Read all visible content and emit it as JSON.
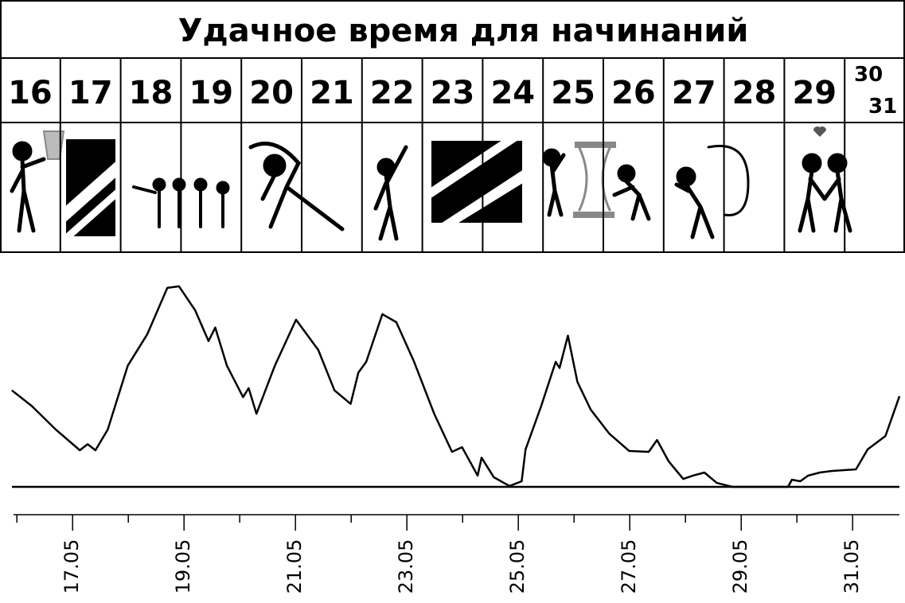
{
  "header": {
    "title": "Удачное время для начинаний",
    "days": [
      "16",
      "17",
      "18",
      "19",
      "20",
      "21",
      "22",
      "23",
      "24",
      "25",
      "26",
      "27",
      "28",
      "29",
      "30",
      "31"
    ]
  },
  "chart_data": {
    "type": "line",
    "color": "#000000",
    "x": [
      15.91,
      16.27,
      16.7,
      17.13,
      17.27,
      17.41,
      17.63,
      17.99,
      18.34,
      18.7,
      18.91,
      19.2,
      19.44,
      19.56,
      19.77,
      20.06,
      20.16,
      20.3,
      20.63,
      21.01,
      21.41,
      21.7,
      21.99,
      22.13,
      22.27,
      22.56,
      22.81,
      23.13,
      23.49,
      23.81,
      23.99,
      24.27,
      24.34,
      24.56,
      24.84,
      25.06,
      25.13,
      25.41,
      25.67,
      25.74,
      25.89,
      26.06,
      26.3,
      26.63,
      26.99,
      27.34,
      27.49,
      27.7,
      27.96,
      28.13,
      28.34,
      28.56,
      28.84,
      29.84,
      29.91,
      30.06,
      30.2,
      30.41,
      30.63,
      31.06,
      31.27,
      31.59,
      31.73,
      31.84
    ],
    "values": [
      43,
      36,
      25.5,
      16.3,
      19,
      16.3,
      25.5,
      54,
      68,
      88.7,
      89.4,
      78.7,
      65,
      71,
      54,
      40,
      44,
      32.6,
      54,
      74.5,
      61,
      43,
      37,
      51,
      55.7,
      77,
      73.4,
      55.7,
      32.6,
      15.6,
      17.7,
      5,
      13,
      4.3,
      0.4,
      2.5,
      16.7,
      36,
      55.7,
      53,
      67.4,
      46.8,
      34.4,
      23.8,
      16,
      15.6,
      20.9,
      11.3,
      3.5,
      5,
      6.4,
      1.8,
      0,
      0,
      3.2,
      2.5,
      5,
      6.4,
      7.1,
      7.8,
      16.7,
      22.7,
      32.6,
      40.4
    ],
    "xlim": [
      15.94,
      31.84
    ],
    "ylim": [
      0,
      100
    ],
    "xticks": [
      {
        "value": 17,
        "label": "17.05"
      },
      {
        "value": 19,
        "label": "19.05"
      },
      {
        "value": 21,
        "label": "21.05"
      },
      {
        "value": 23,
        "label": "23.05"
      },
      {
        "value": 25,
        "label": "25.05"
      },
      {
        "value": 27,
        "label": "27.05"
      },
      {
        "value": 29,
        "label": "29.05"
      },
      {
        "value": 31,
        "label": "31.05"
      }
    ],
    "xminorticks": [
      16,
      18,
      20,
      22,
      24,
      26,
      28,
      30
    ]
  }
}
